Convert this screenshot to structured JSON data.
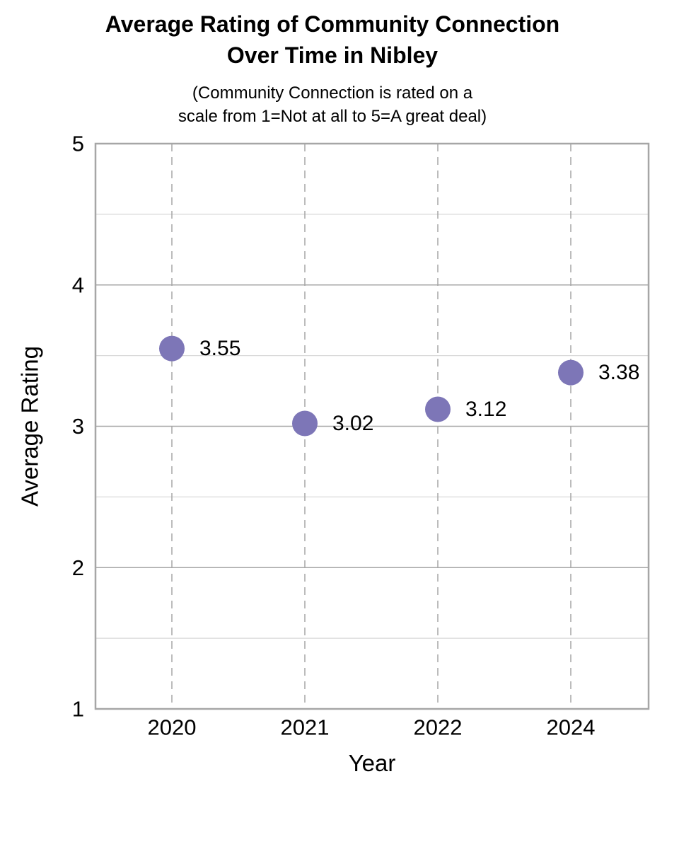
{
  "page": {
    "background": "#ffffff"
  },
  "chart_data": {
    "type": "scatter",
    "title_line1": "Average Rating of Community Connection",
    "title_line2": "Over Time in Nibley",
    "subtitle_line1": "(Community Connection is rated on a",
    "subtitle_line2": "scale from 1=Not at all to 5=A great deal)",
    "xlabel": "Year",
    "ylabel": "Average Rating",
    "categories": [
      "2020",
      "2021",
      "2022",
      "2024"
    ],
    "values": [
      3.55,
      3.02,
      3.12,
      3.38
    ],
    "point_labels": [
      "3.55",
      "3.02",
      "3.12",
      "3.38"
    ],
    "ylim": [
      1,
      5
    ],
    "y_major_ticks": [
      5,
      4,
      3,
      2,
      1
    ],
    "y_minor_gridlines": [
      4.5,
      3.5,
      2.5,
      1.5
    ],
    "grid": {
      "horizontal_major": "solid",
      "horizontal_minor": "solid",
      "vertical": "dashed"
    },
    "legend": "none",
    "colors": {
      "marker": "#7d76b7",
      "border": "#a6a6a6",
      "major_grid": "#a6a6a6",
      "minor_grid": "#d9d9d9",
      "dashed_grid": "#a6a6a6",
      "text": "#000000"
    }
  }
}
